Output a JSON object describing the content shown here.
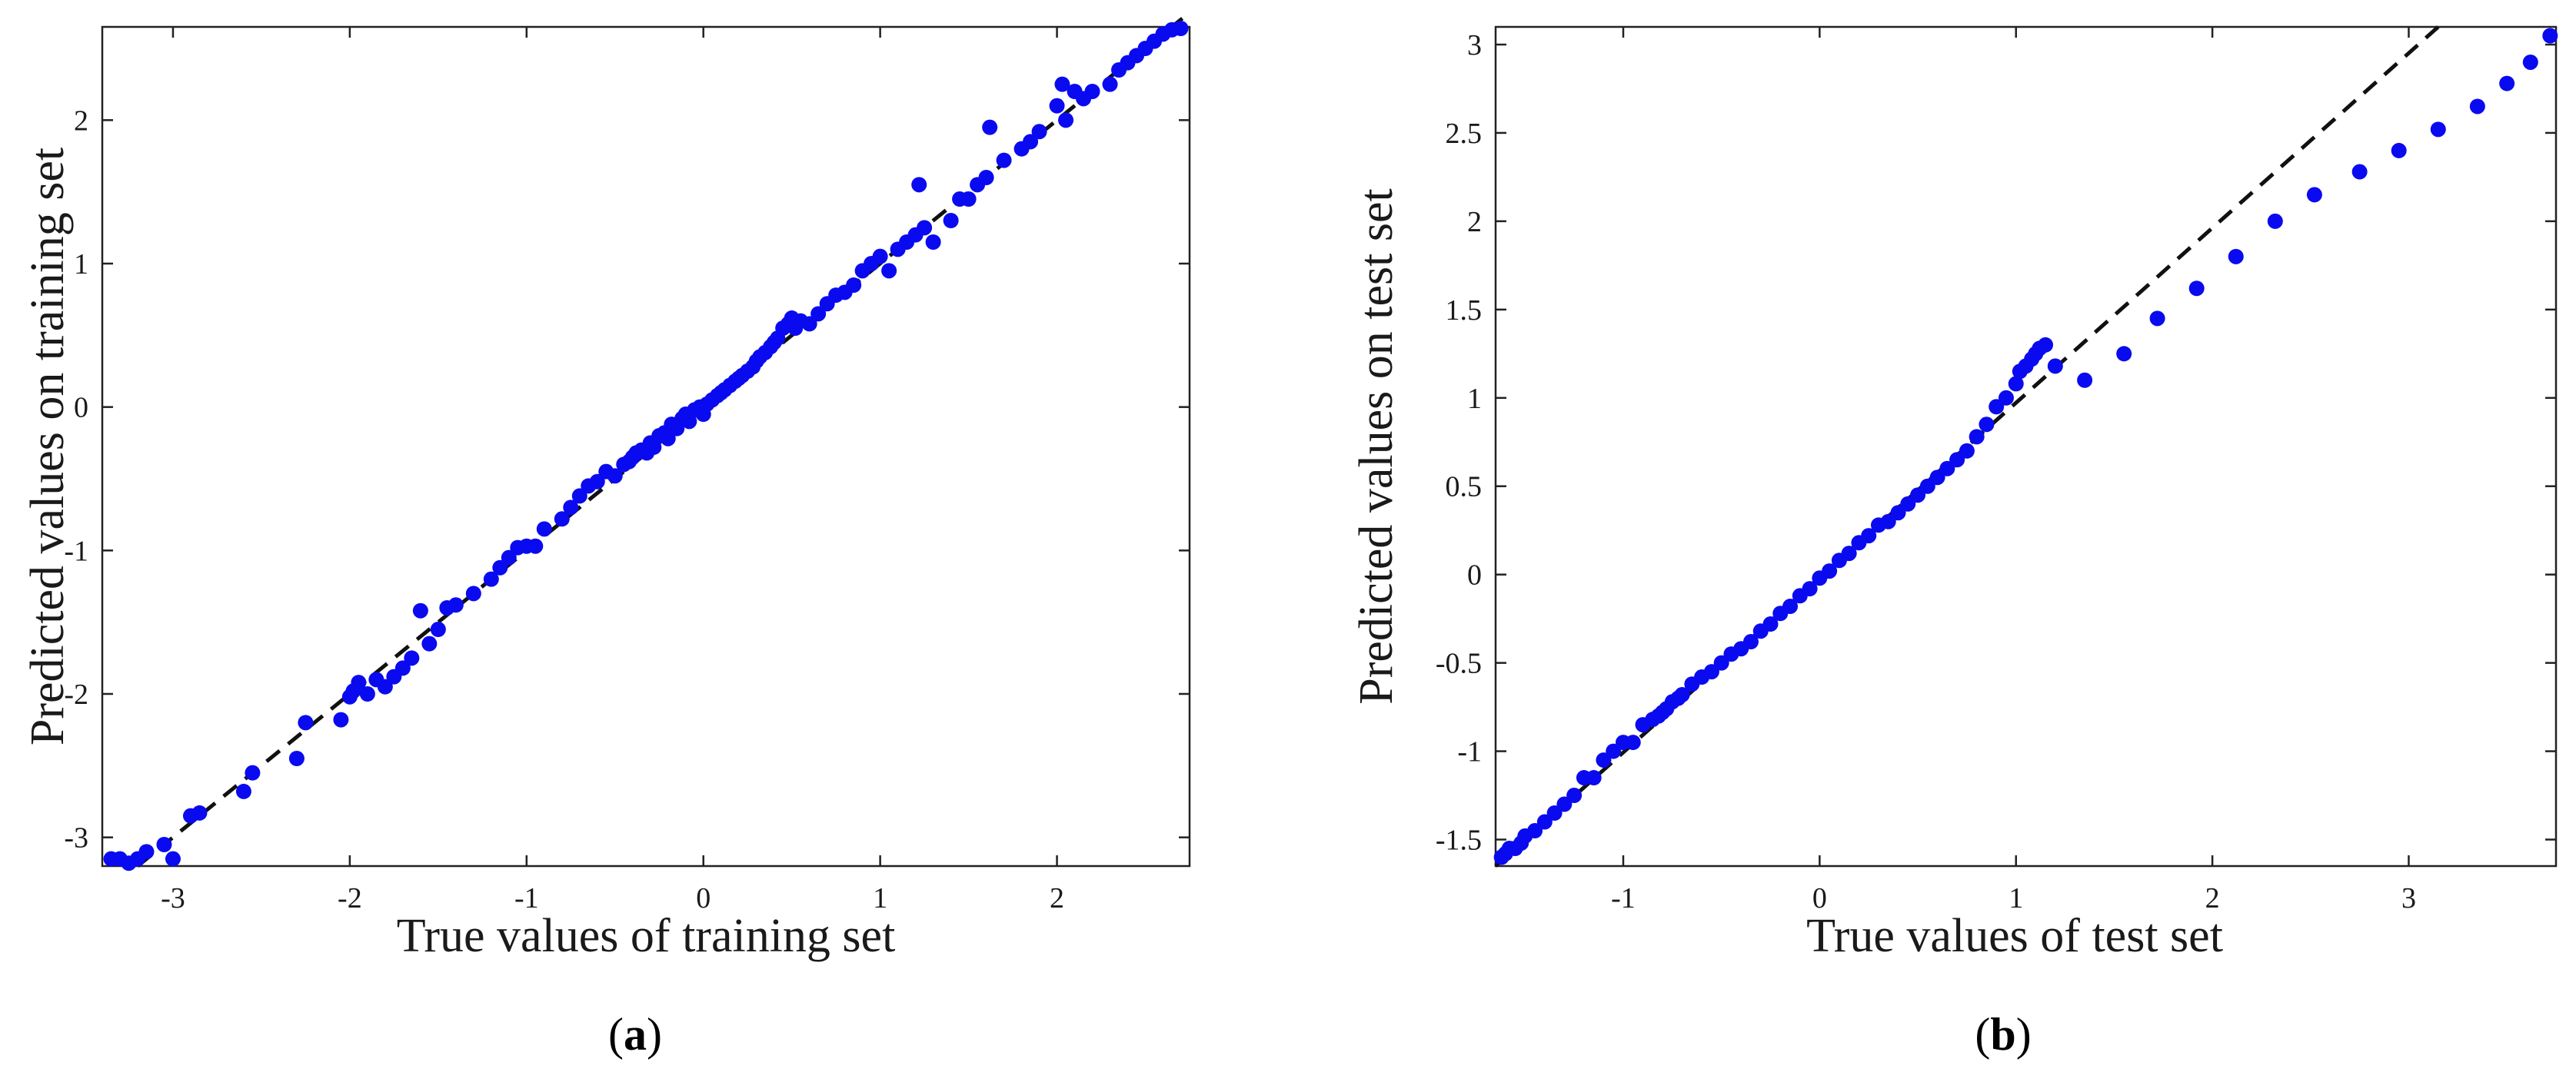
{
  "colors": {
    "points": "#0a0af0",
    "reference_line": "#111111",
    "axes": "#222222"
  },
  "chart_data": [
    {
      "type": "scatter",
      "panel": "(a)",
      "caption_letter": "a",
      "xlabel": "True values of training set",
      "ylabel": "Predicted values on training set",
      "xlim": [
        -3.4,
        2.75
      ],
      "ylim": [
        -3.2,
        2.65
      ],
      "xticks": [
        -3,
        -2,
        -1,
        0,
        1,
        2
      ],
      "yticks": [
        -3,
        -2,
        -1,
        0,
        1,
        2
      ],
      "reference_line": {
        "style": "dashed",
        "x": [
          -3.2,
          2.75
        ],
        "y": [
          -3.2,
          2.75
        ]
      },
      "grid": false,
      "legend": "none",
      "series": [
        {
          "x": [
            -3.35,
            -3.3,
            -3.25,
            -3.2,
            -3.15,
            -3.05,
            -3.0,
            -2.9,
            -2.85,
            -2.6,
            -2.55,
            -2.3,
            -2.25,
            -2.05,
            -2.0,
            -1.98,
            -1.95,
            -1.9,
            -1.85,
            -1.8,
            -1.75,
            -1.7,
            -1.65,
            -1.6,
            -1.55,
            -1.5,
            -1.45,
            -1.4,
            -1.3,
            -1.2,
            -1.15,
            -1.1,
            -1.05,
            -1.0,
            -0.95,
            -0.9,
            -0.8,
            -0.75,
            -0.7,
            -0.65,
            -0.6,
            -0.55,
            -0.5,
            -0.45,
            -0.42,
            -0.4,
            -0.38,
            -0.35,
            -0.32,
            -0.3,
            -0.28,
            -0.25,
            -0.22,
            -0.2,
            -0.18,
            -0.15,
            -0.12,
            -0.1,
            -0.08,
            -0.05,
            -0.02,
            0.0,
            0.02,
            0.05,
            0.08,
            0.1,
            0.12,
            0.15,
            0.18,
            0.2,
            0.22,
            0.25,
            0.28,
            0.3,
            0.32,
            0.35,
            0.38,
            0.4,
            0.42,
            0.45,
            0.48,
            0.5,
            0.52,
            0.55,
            0.6,
            0.65,
            0.7,
            0.75,
            0.8,
            0.85,
            0.9,
            0.95,
            1.0,
            1.05,
            1.1,
            1.15,
            1.2,
            1.22,
            1.25,
            1.3,
            1.4,
            1.45,
            1.5,
            1.55,
            1.6,
            1.62,
            1.7,
            1.8,
            1.85,
            1.9,
            2.0,
            2.03,
            2.05,
            2.1,
            2.15,
            2.2,
            2.3,
            2.35,
            2.4,
            2.45,
            2.5,
            2.55,
            2.6,
            2.65,
            2.7
          ],
          "y": [
            -3.15,
            -3.15,
            -3.18,
            -3.15,
            -3.1,
            -3.05,
            -3.15,
            -2.85,
            -2.83,
            -2.68,
            -2.55,
            -2.45,
            -2.2,
            -2.18,
            -2.02,
            -1.98,
            -1.92,
            -2.0,
            -1.9,
            -1.95,
            -1.88,
            -1.82,
            -1.75,
            -1.42,
            -1.65,
            -1.55,
            -1.4,
            -1.38,
            -1.3,
            -1.2,
            -1.12,
            -1.05,
            -0.98,
            -0.97,
            -0.97,
            -0.85,
            -0.78,
            -0.7,
            -0.62,
            -0.55,
            -0.52,
            -0.45,
            -0.48,
            -0.4,
            -0.38,
            -0.35,
            -0.32,
            -0.3,
            -0.32,
            -0.25,
            -0.28,
            -0.2,
            -0.18,
            -0.22,
            -0.12,
            -0.15,
            -0.08,
            -0.05,
            -0.1,
            -0.02,
            0.0,
            -0.05,
            0.02,
            0.05,
            0.08,
            0.1,
            0.12,
            0.15,
            0.18,
            0.2,
            0.22,
            0.25,
            0.28,
            0.32,
            0.35,
            0.38,
            0.42,
            0.45,
            0.48,
            0.55,
            0.58,
            0.62,
            0.55,
            0.6,
            0.58,
            0.65,
            0.72,
            0.78,
            0.8,
            0.85,
            0.95,
            1.0,
            1.05,
            0.95,
            1.1,
            1.15,
            1.2,
            1.55,
            1.25,
            1.15,
            1.3,
            1.45,
            1.45,
            1.55,
            1.6,
            1.95,
            1.72,
            1.8,
            1.85,
            1.92,
            2.1,
            2.25,
            2.0,
            2.2,
            2.15,
            2.2,
            2.25,
            2.35,
            2.4,
            2.45,
            2.5,
            2.55,
            2.6,
            2.63,
            2.65
          ]
        }
      ]
    },
    {
      "type": "scatter",
      "panel": "(b)",
      "caption_letter": "b",
      "xlabel": "True values of test set",
      "ylabel": "Predicted values on test set",
      "xlim": [
        -1.65,
        3.75
      ],
      "ylim": [
        -1.65,
        3.1
      ],
      "xticks": [
        -1,
        0,
        1,
        2,
        3
      ],
      "yticks": [
        -1.5,
        -1,
        -0.5,
        0,
        0.5,
        1,
        1.5,
        2,
        2.5,
        3
      ],
      "reference_line": {
        "style": "dashed",
        "x": [
          -1.65,
          3.15
        ],
        "y": [
          -1.65,
          3.1
        ]
      },
      "grid": false,
      "legend": "none",
      "series": [
        {
          "x": [
            -1.62,
            -1.6,
            -1.58,
            -1.55,
            -1.52,
            -1.5,
            -1.45,
            -1.4,
            -1.35,
            -1.3,
            -1.25,
            -1.2,
            -1.15,
            -1.1,
            -1.05,
            -1.0,
            -0.95,
            -0.9,
            -0.85,
            -0.82,
            -0.8,
            -0.78,
            -0.75,
            -0.72,
            -0.7,
            -0.65,
            -0.6,
            -0.55,
            -0.5,
            -0.45,
            -0.4,
            -0.35,
            -0.3,
            -0.25,
            -0.2,
            -0.15,
            -0.1,
            -0.05,
            0.0,
            0.05,
            0.1,
            0.15,
            0.2,
            0.25,
            0.3,
            0.35,
            0.4,
            0.45,
            0.5,
            0.55,
            0.6,
            0.65,
            0.7,
            0.75,
            0.8,
            0.85,
            0.9,
            0.95,
            1.0,
            1.02,
            1.05,
            1.08,
            1.1,
            1.12,
            1.15,
            1.2,
            1.35,
            1.55,
            1.72,
            1.92,
            2.12,
            2.32,
            2.52,
            2.75,
            2.95,
            3.15,
            3.35,
            3.5,
            3.62,
            3.72
          ],
          "y": [
            -1.6,
            -1.58,
            -1.55,
            -1.55,
            -1.52,
            -1.48,
            -1.45,
            -1.4,
            -1.35,
            -1.3,
            -1.25,
            -1.15,
            -1.15,
            -1.05,
            -1.0,
            -0.95,
            -0.95,
            -0.85,
            -0.82,
            -0.8,
            -0.78,
            -0.76,
            -0.72,
            -0.7,
            -0.68,
            -0.62,
            -0.58,
            -0.55,
            -0.5,
            -0.45,
            -0.42,
            -0.38,
            -0.32,
            -0.28,
            -0.22,
            -0.18,
            -0.12,
            -0.08,
            -0.02,
            0.02,
            0.08,
            0.12,
            0.18,
            0.22,
            0.28,
            0.3,
            0.35,
            0.4,
            0.45,
            0.5,
            0.55,
            0.6,
            0.65,
            0.7,
            0.78,
            0.85,
            0.95,
            1.0,
            1.08,
            1.15,
            1.18,
            1.22,
            1.25,
            1.28,
            1.3,
            1.18,
            1.1,
            1.25,
            1.45,
            1.62,
            1.8,
            2.0,
            2.15,
            2.28,
            2.4,
            2.52,
            2.65,
            2.78,
            2.9,
            3.05
          ]
        }
      ]
    }
  ]
}
